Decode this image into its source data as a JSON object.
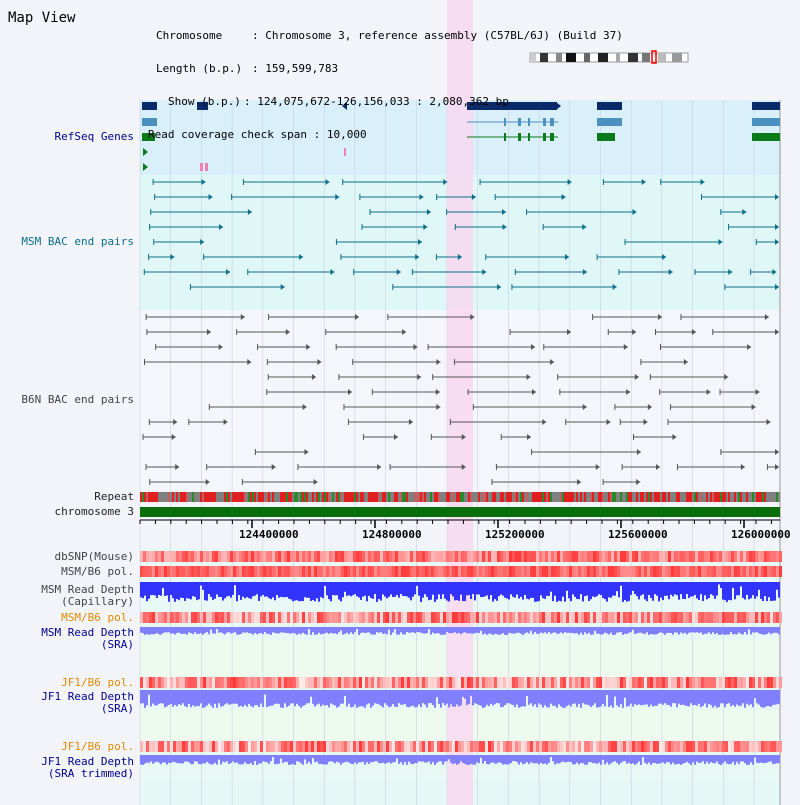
{
  "view_title": "Map View",
  "info": {
    "chromosome_label": "Chromosome",
    "chromosome_value": "Chromosome 3, reference assembly (C57BL/6J) (Build 37)",
    "length_label": "Length (b.p.)",
    "length_value": "159,599,783",
    "show_label": "Show (b.p.)",
    "show_value": "124,075,672-126,156,033 : 2,080,362 bp",
    "coverage_label": "Read coverage check span",
    "coverage_value": "10,000"
  },
  "tracks": {
    "refseq": "RefSeq Genes",
    "msm_bac": "MSM BAC end pairs",
    "b6n_bac": "B6N BAC end pairs",
    "repeat": "Repeat",
    "chromosome": "chromosome 3",
    "dbsnp": "dbSNP(Mouse)",
    "msm_b6_pol_1": "MSM/B6 pol.",
    "msm_depth_cap_1": "MSM Read Depth",
    "msm_depth_cap_2": "(Capillary)",
    "msm_b6_pol_2": "MSM/B6 pol.",
    "msm_depth_sra_1": "MSM Read Depth",
    "msm_depth_sra_2": "(SRA)",
    "jf1_b6_pol_1": "JF1/B6 pol.",
    "jf1_depth_sra_1": "JF1 Read Depth",
    "jf1_depth_sra_2": "(SRA)",
    "jf1_b6_pol_2": "JF1/B6 pol.",
    "jf1_depth_trim_1": "JF1 Read Depth",
    "jf1_depth_trim_2": "(SRA trimmed)"
  },
  "axis_ticks": [
    "124400000",
    "124800000",
    "125200000",
    "125600000",
    "126000000"
  ],
  "colors": {
    "refseq_bg": "#d9f0fa",
    "bac_bg": "#e0f7f7",
    "highlight": "#f8d8f0",
    "gene_navy": "#0a2a6a",
    "gene_lightblue": "#4a90c0",
    "gene_green": "#0a7a1a",
    "msm_line": "#0b6e8a",
    "b6n_line": "#555555",
    "chromosome_bar": "#0a6e0a",
    "depth_blue": "#3333ff",
    "depth_light": "#8080ff",
    "pol_red": "#ff3333"
  },
  "icons": {
    "karyotype": "chromosome-ideogram-icon",
    "highlight_region": "selection-highlight"
  }
}
